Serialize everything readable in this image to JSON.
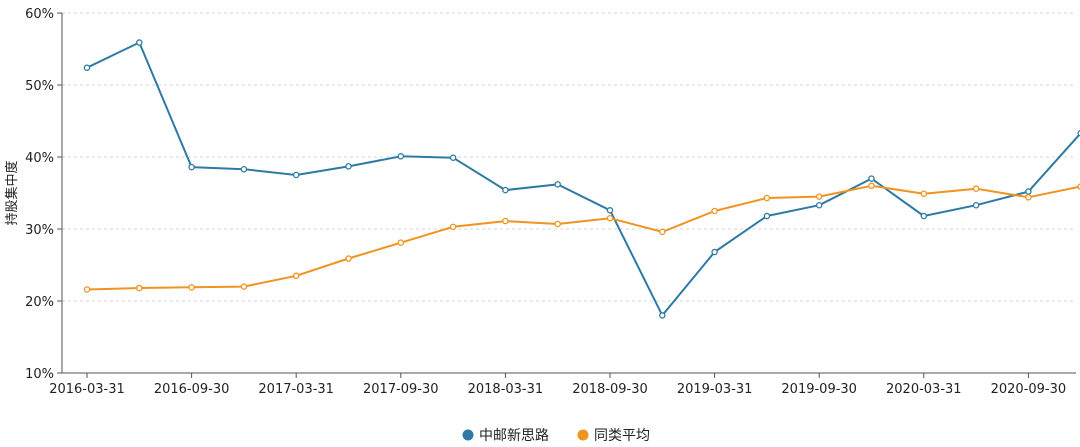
{
  "chart_data": {
    "type": "line",
    "ylabel": "持股集中度",
    "xlabel": "",
    "ylim": [
      10,
      60
    ],
    "yticks": [
      "10%",
      "20%",
      "30%",
      "40%",
      "50%",
      "60%"
    ],
    "xtick_labels": [
      "2016-03-31",
      "2016-09-30",
      "2017-03-31",
      "2017-09-30",
      "2018-03-31",
      "2018-09-30",
      "2019-03-31",
      "2019-09-30",
      "2020-03-31",
      "2020-09-30"
    ],
    "grid": true,
    "legend_position": "bottom",
    "series": [
      {
        "name": "中邮新思路",
        "color": "#2e7aa3",
        "values": [
          52.4,
          55.9,
          38.6,
          38.3,
          37.5,
          38.7,
          40.1,
          39.9,
          35.4,
          36.2,
          32.6,
          18.0,
          26.8,
          31.8,
          33.3,
          37.0,
          31.8,
          33.3,
          35.2,
          43.3
        ]
      },
      {
        "name": "同类平均",
        "color": "#f0931f",
        "values": [
          21.6,
          21.8,
          21.9,
          22.0,
          23.5,
          25.9,
          28.1,
          30.3,
          31.1,
          30.7,
          31.5,
          29.6,
          32.5,
          34.3,
          34.5,
          36.0,
          34.9,
          35.6,
          34.4,
          35.9
        ]
      }
    ]
  }
}
